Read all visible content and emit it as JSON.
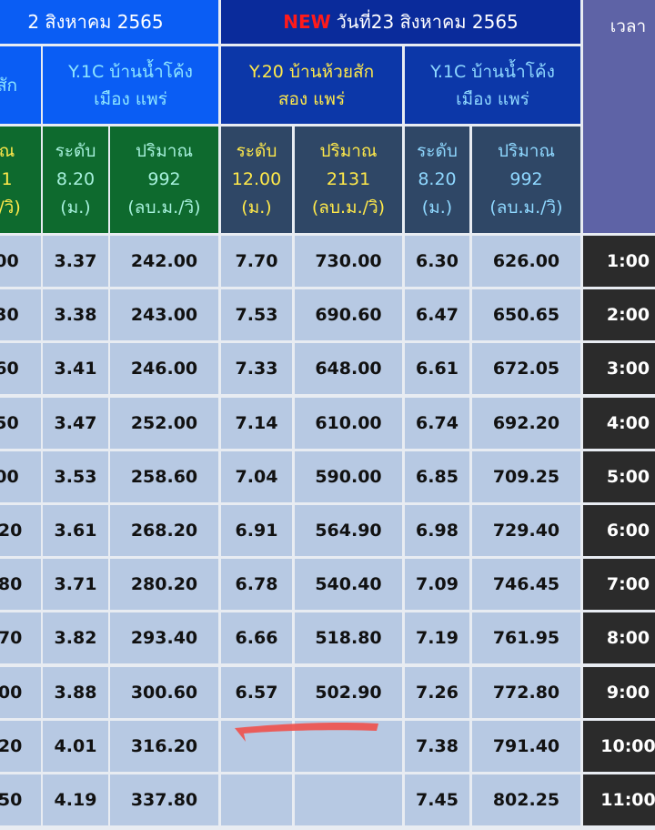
{
  "header": {
    "left_date": "2 สิงหาคม 2565",
    "new_badge": "NEW",
    "right_date": "วันที่23 สิงหาคม 2565"
  },
  "stations": {
    "left_partial": "สัก",
    "left_y1c_line1": "Y.1C บ้านน้ำโค้ง",
    "left_y1c_line2": "เมือง แพร่",
    "right_y20_line1": "Y.20 บ้านห้วยสัก",
    "right_y20_line2": "สอง แพร่",
    "right_y1c_line1": "Y.1C บ้านน้ำโค้ง",
    "right_y1c_line2": "เมือง แพร่",
    "time_label": "เวลา"
  },
  "subheaders": [
    {
      "l1": "ณ",
      "l2": "1",
      "l3": "./วิ)"
    },
    {
      "l1": "ระดับ",
      "l2": "8.20",
      "l3": "(ม.)"
    },
    {
      "l1": "ปริมาณ",
      "l2": "992",
      "l3": "(ลบ.ม./วิ)"
    },
    {
      "l1": "ระดับ",
      "l2": "12.00",
      "l3": "(ม.)"
    },
    {
      "l1": "ปริมาณ",
      "l2": "2131",
      "l3": "(ลบ.ม./วิ)"
    },
    {
      "l1": "ระดับ",
      "l2": "8.20",
      "l3": "(ม.)"
    },
    {
      "l1": "ปริมาณ",
      "l2": "992",
      "l3": "(ลบ.ม./วิ)"
    }
  ],
  "rows": [
    [
      "00",
      "3.37",
      "242.00",
      "7.70",
      "730.00",
      "6.30",
      "626.00",
      "1:00"
    ],
    [
      "30",
      "3.38",
      "243.00",
      "7.53",
      "690.60",
      "6.47",
      "650.65",
      "2:00"
    ],
    [
      "60",
      "3.41",
      "246.00",
      "7.33",
      "648.00",
      "6.61",
      "672.05",
      "3:00"
    ],
    [
      "50",
      "3.47",
      "252.00",
      "7.14",
      "610.00",
      "6.74",
      "692.20",
      "4:00"
    ],
    [
      "00",
      "3.53",
      "258.60",
      "7.04",
      "590.00",
      "6.85",
      "709.25",
      "5:00"
    ],
    [
      ".20",
      "3.61",
      "268.20",
      "6.91",
      "564.90",
      "6.98",
      "729.40",
      "6:00"
    ],
    [
      ".80",
      "3.71",
      "280.20",
      "6.78",
      "540.40",
      "7.09",
      "746.45",
      "7:00"
    ],
    [
      ".70",
      "3.82",
      "293.40",
      "6.66",
      "518.80",
      "7.19",
      "761.95",
      "8:00"
    ],
    [
      ".00",
      "3.88",
      "300.60",
      "6.57",
      "502.90",
      "7.26",
      "772.80",
      "9:00"
    ],
    [
      ".20",
      "4.01",
      "316.20",
      "",
      "",
      "7.38",
      "791.40",
      "10:00"
    ],
    [
      ".50",
      "4.19",
      "337.80",
      "",
      "",
      "7.45",
      "802.25",
      "11:00"
    ]
  ],
  "colors": {
    "annotation_stroke": "#f0504a"
  }
}
